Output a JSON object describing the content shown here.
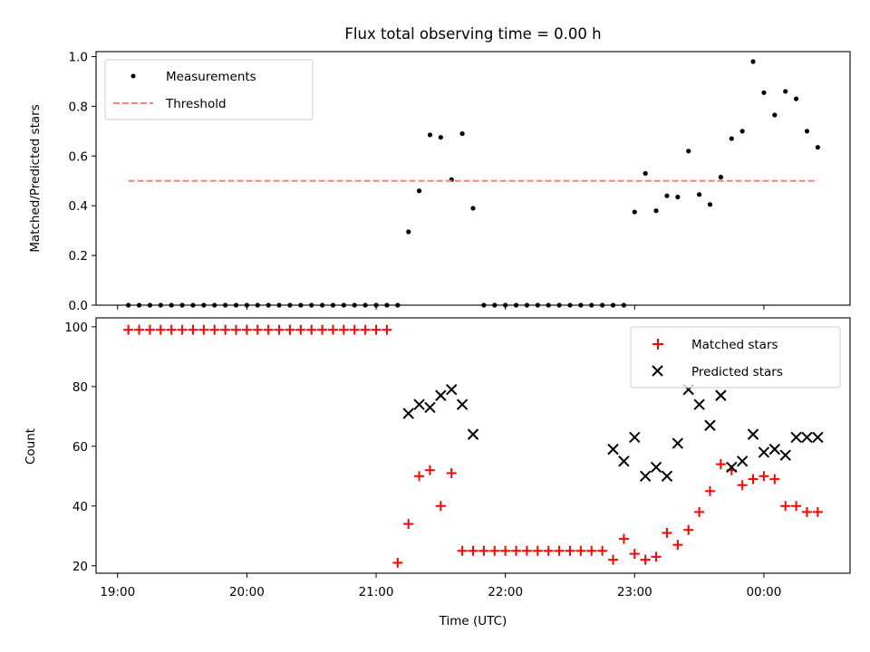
{
  "figure": {
    "title": "Flux total observing time = 0.00 h"
  },
  "chart_data": [
    {
      "type": "scatter",
      "ylabel": "Matched/Predicted stars",
      "ylim": [
        0,
        1.02
      ],
      "yticks": [
        0.0,
        0.2,
        0.4,
        0.6,
        0.8,
        1.0
      ],
      "ytick_labels": [
        "0.0",
        "0.2",
        "0.4",
        "0.6",
        "0.8",
        "1.0"
      ],
      "xlim": [
        "18:50",
        "00:40"
      ],
      "grid": false,
      "legend": "top-left",
      "series": [
        {
          "name": "Measurements",
          "marker": "dot",
          "color": "#000000",
          "x": [
            "19:05",
            "19:10",
            "19:15",
            "19:20",
            "19:25",
            "19:30",
            "19:35",
            "19:40",
            "19:45",
            "19:50",
            "19:55",
            "20:00",
            "20:05",
            "20:10",
            "20:15",
            "20:20",
            "20:25",
            "20:30",
            "20:35",
            "20:40",
            "20:45",
            "20:50",
            "20:55",
            "21:00",
            "21:05",
            "21:10",
            "21:15",
            "21:20",
            "21:25",
            "21:30",
            "21:35",
            "21:40",
            "21:45",
            "21:50",
            "21:55",
            "22:00",
            "22:05",
            "22:10",
            "22:15",
            "22:20",
            "22:25",
            "22:30",
            "22:35",
            "22:40",
            "22:45",
            "22:50",
            "22:55",
            "23:00",
            "23:05",
            "23:10",
            "23:15",
            "23:20",
            "23:25",
            "23:30",
            "23:35",
            "23:40",
            "23:45",
            "23:50",
            "23:55",
            "00:00",
            "00:05",
            "00:10",
            "00:15",
            "00:20",
            "00:25"
          ],
          "y": [
            0,
            0,
            0,
            0,
            0,
            0,
            0,
            0,
            0,
            0,
            0,
            0,
            0,
            0,
            0,
            0,
            0,
            0,
            0,
            0,
            0,
            0,
            0,
            0,
            0,
            0,
            0.295,
            0.46,
            0.685,
            0.675,
            0.505,
            0.69,
            0.39,
            0,
            0,
            0,
            0,
            0,
            0,
            0,
            0,
            0,
            0,
            0,
            0,
            0,
            0,
            0.375,
            0.53,
            0.38,
            0.44,
            0.435,
            0.62,
            0.445,
            0.405,
            0.515,
            0.67,
            0.7,
            0.98,
            0.855,
            0.765,
            0.86,
            0.83,
            0.7,
            0.635
          ]
        },
        {
          "name": "Threshold",
          "style": "dashed",
          "color": "#ff7f7f",
          "x": [
            "19:05",
            "00:25"
          ],
          "y": [
            0.5,
            0.5
          ]
        }
      ]
    },
    {
      "type": "scatter",
      "xlabel": "Time (UTC)",
      "ylabel": "Count",
      "ylim": [
        17.5,
        103
      ],
      "yticks": [
        20,
        40,
        60,
        80,
        100
      ],
      "ytick_labels": [
        "20",
        "40",
        "60",
        "80",
        "100"
      ],
      "xlim": [
        "18:50",
        "00:40"
      ],
      "xticks": [
        "19:00",
        "20:00",
        "21:00",
        "22:00",
        "23:00",
        "00:00"
      ],
      "xtick_labels": [
        "19:00",
        "20:00",
        "21:00",
        "22:00",
        "23:00",
        "00:00"
      ],
      "grid": false,
      "legend": "top-right",
      "series": [
        {
          "name": "Matched stars",
          "marker": "plus",
          "color": "#ff0000",
          "x": [
            "19:05",
            "19:10",
            "19:15",
            "19:20",
            "19:25",
            "19:30",
            "19:35",
            "19:40",
            "19:45",
            "19:50",
            "19:55",
            "20:00",
            "20:05",
            "20:10",
            "20:15",
            "20:20",
            "20:25",
            "20:30",
            "20:35",
            "20:40",
            "20:45",
            "20:50",
            "20:55",
            "21:00",
            "21:05",
            "21:10",
            "21:15",
            "21:20",
            "21:25",
            "21:30",
            "21:35",
            "21:40",
            "21:45",
            "21:50",
            "21:55",
            "22:00",
            "22:05",
            "22:10",
            "22:15",
            "22:20",
            "22:25",
            "22:30",
            "22:35",
            "22:40",
            "22:45",
            "22:50",
            "22:55",
            "23:00",
            "23:05",
            "23:10",
            "23:15",
            "23:20",
            "23:25",
            "23:30",
            "23:35",
            "23:40",
            "23:45",
            "23:50",
            "23:55",
            "00:00",
            "00:05",
            "00:10",
            "00:15",
            "00:20",
            "00:25"
          ],
          "y": [
            99,
            99,
            99,
            99,
            99,
            99,
            99,
            99,
            99,
            99,
            99,
            99,
            99,
            99,
            99,
            99,
            99,
            99,
            99,
            99,
            99,
            99,
            99,
            99,
            99,
            21,
            34,
            50,
            52,
            40,
            51,
            25,
            25,
            25,
            25,
            25,
            25,
            25,
            25,
            25,
            25,
            25,
            25,
            25,
            25,
            22,
            29,
            24,
            22,
            23,
            31,
            27,
            32,
            38,
            45,
            54,
            52,
            47,
            49,
            50,
            49,
            40,
            40,
            38,
            38
          ]
        },
        {
          "name": "Predicted stars",
          "marker": "x",
          "color": "#000000",
          "x": [
            "21:15",
            "21:20",
            "21:25",
            "21:30",
            "21:35",
            "21:40",
            "21:45",
            "22:50",
            "22:55",
            "23:00",
            "23:05",
            "23:10",
            "23:15",
            "23:20",
            "23:25",
            "23:30",
            "23:35",
            "23:40",
            "23:45",
            "23:50",
            "23:55",
            "00:00",
            "00:05",
            "00:10",
            "00:15",
            "00:20",
            "00:25"
          ],
          "y": [
            71,
            74,
            73,
            77,
            79,
            74,
            64,
            59,
            55,
            63,
            50,
            53,
            50,
            61,
            79,
            74,
            67,
            77,
            53,
            55,
            64,
            58,
            59,
            57,
            63,
            63,
            63
          ]
        }
      ]
    }
  ]
}
